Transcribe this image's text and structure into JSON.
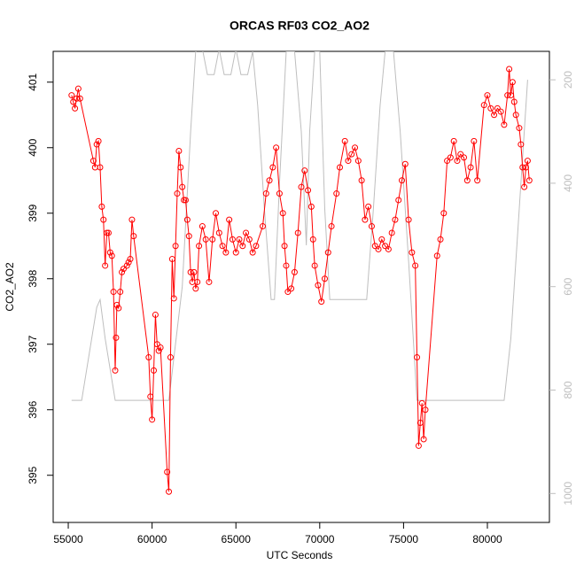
{
  "chart_data": {
    "type": "line",
    "title": "ORCAS RF03 CO2_AO2",
    "x_label": "UTC Seconds",
    "y_label": "CO2_AO2",
    "xlim": [
      54100,
      83700
    ],
    "ylim": [
      394.28,
      401.47
    ],
    "y2lim": [
      1056,
      145
    ],
    "xticks": [
      55000,
      60000,
      65000,
      70000,
      75000,
      80000
    ],
    "yticks": [
      395,
      396,
      397,
      398,
      399,
      400,
      401
    ],
    "y2ticks": [
      200,
      400,
      600,
      800,
      1000
    ],
    "series": [
      {
        "color": "#ff0000",
        "markers": true,
        "x": [
          55200,
          55300,
          55400,
          55500,
          55600,
          55700,
          56500,
          56600,
          56700,
          56800,
          56900,
          57000,
          57100,
          57200,
          57300,
          57400,
          57500,
          57600,
          57700,
          57800,
          57850,
          57900,
          58000,
          58100,
          58200,
          58300,
          58500,
          58600,
          58700,
          58800,
          58900,
          59800,
          59900,
          60000,
          60100,
          60200,
          60300,
          60400,
          60500,
          60900,
          61000,
          61100,
          61200,
          61300,
          61400,
          61500,
          61600,
          61700,
          61800,
          61900,
          62000,
          62100,
          62200,
          62300,
          62400,
          62500,
          62600,
          62700,
          62800,
          63000,
          63200,
          63400,
          63600,
          63800,
          64000,
          64200,
          64400,
          64600,
          64800,
          65000,
          65200,
          65400,
          65600,
          65800,
          66000,
          66200,
          66600,
          66800,
          67000,
          67200,
          67400,
          67600,
          67800,
          67900,
          68000,
          68100,
          68300,
          68500,
          68700,
          68900,
          69100,
          69300,
          69500,
          69600,
          69700,
          69900,
          70100,
          70300,
          70500,
          70700,
          71000,
          71200,
          71500,
          71700,
          71900,
          72100,
          72300,
          72500,
          72700,
          72900,
          73100,
          73300,
          73500,
          73700,
          73900,
          74100,
          74300,
          74500,
          74700,
          74900,
          75100,
          75300,
          75500,
          75700,
          75800,
          75900,
          76000,
          76100,
          76200,
          76300,
          77000,
          77200,
          77400,
          77600,
          77800,
          78000,
          78200,
          78400,
          78600,
          78800,
          79000,
          79200,
          79400,
          79800,
          80000,
          80200,
          80400,
          80600,
          80800,
          81000,
          81200,
          81300,
          81400,
          81500,
          81600,
          81700,
          81900,
          82000,
          82100,
          82200,
          82300,
          82400,
          82500
        ],
        "values": [
          400.8,
          400.7,
          400.6,
          400.75,
          400.9,
          400.75,
          399.8,
          399.7,
          400.05,
          400.1,
          399.7,
          399.1,
          398.9,
          398.2,
          398.7,
          398.7,
          398.4,
          398.35,
          397.8,
          396.6,
          397.1,
          397.6,
          397.55,
          397.8,
          398.1,
          398.15,
          398.2,
          398.25,
          398.3,
          398.9,
          398.65,
          396.8,
          396.2,
          395.85,
          396.6,
          397.45,
          397.0,
          396.9,
          396.95,
          395.05,
          394.75,
          396.8,
          398.3,
          397.7,
          398.5,
          399.3,
          399.95,
          399.7,
          399.4,
          399.2,
          399.2,
          398.9,
          398.65,
          398.1,
          397.95,
          398.1,
          397.85,
          397.95,
          398.5,
          398.8,
          398.6,
          397.95,
          398.6,
          399.0,
          398.7,
          398.5,
          398.4,
          398.9,
          398.6,
          398.4,
          398.6,
          398.5,
          398.7,
          398.6,
          398.4,
          398.5,
          398.8,
          399.3,
          399.5,
          399.7,
          400.0,
          399.3,
          399.0,
          398.5,
          398.2,
          397.8,
          397.85,
          398.1,
          398.7,
          399.4,
          399.65,
          399.35,
          399.1,
          398.6,
          398.2,
          397.9,
          397.65,
          398.0,
          398.4,
          398.8,
          399.3,
          399.7,
          400.1,
          399.8,
          399.9,
          400.0,
          399.8,
          399.5,
          398.9,
          399.1,
          398.8,
          398.5,
          398.45,
          398.6,
          398.5,
          398.45,
          398.7,
          398.9,
          399.2,
          399.5,
          399.75,
          398.9,
          398.4,
          398.2,
          396.8,
          395.45,
          395.8,
          396.1,
          395.55,
          396.0,
          398.35,
          398.6,
          399.0,
          399.8,
          399.85,
          400.1,
          399.8,
          399.9,
          399.85,
          399.5,
          399.7,
          400.1,
          399.5,
          400.65,
          400.8,
          400.6,
          400.5,
          400.6,
          400.55,
          400.35,
          400.8,
          401.2,
          400.8,
          401.0,
          400.7,
          400.5,
          400.3,
          400.05,
          399.7,
          399.4,
          399.7,
          399.8,
          399.5
        ]
      },
      {
        "color": "#bebebe",
        "axis": "y2",
        "markers": false,
        "x": [
          55200,
          55800,
          56700,
          56900,
          57200,
          57800,
          61000,
          61800,
          62300,
          62600,
          63000,
          63300,
          63700,
          64000,
          64300,
          64700,
          65000,
          65300,
          65700,
          66000,
          66300,
          66700,
          67100,
          67300,
          67600,
          68000,
          68500,
          68900,
          69200,
          69400,
          69700,
          70000,
          70300,
          70600,
          71000,
          72000,
          72800,
          73200,
          73600,
          73900,
          74400,
          74800,
          75300,
          75800,
          81000,
          81400,
          81900,
          82400
        ],
        "values": [
          820,
          820,
          640,
          625,
          700,
          820,
          820,
          600,
          300,
          145,
          140,
          190,
          190,
          140,
          190,
          190,
          140,
          190,
          190,
          145,
          250,
          450,
          625,
          625,
          400,
          145,
          145,
          300,
          520,
          300,
          145,
          145,
          450,
          625,
          625,
          625,
          625,
          450,
          250,
          145,
          145,
          300,
          550,
          820,
          820,
          700,
          450,
          200
        ]
      }
    ]
  }
}
